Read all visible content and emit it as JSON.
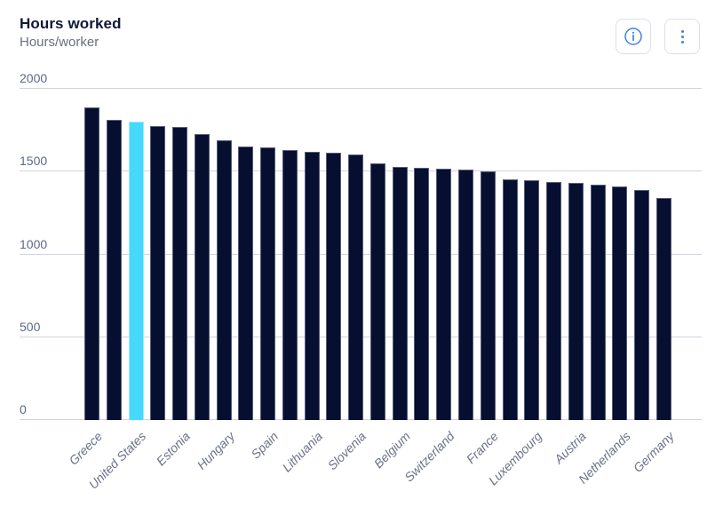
{
  "header": {
    "title": "Hours worked",
    "subtitle": "Hours/worker"
  },
  "toolbar": {
    "info_button_label": "Information",
    "menu_button_label": "More options"
  },
  "colors": {
    "bar": "#060f2f",
    "bar_border": "#565e7a",
    "highlight": "#45d9fc",
    "gridline": "#cdd4e1",
    "axis_text": "#5e6887",
    "icon_blue": "#4080e8"
  },
  "chart_data": {
    "type": "bar",
    "title": "Hours worked",
    "subtitle": "Hours/worker",
    "ylabel": "Hours/worker",
    "xlabel": "",
    "ylim": [
      0,
      2000
    ],
    "yticks": [
      0,
      500,
      1000,
      1500,
      2000
    ],
    "grid": true,
    "legend": false,
    "sorted": "descending",
    "visible_x_labels": [
      "Greece",
      "United States",
      "Estonia",
      "Hungary",
      "Spain",
      "Lithuania",
      "Slovenia",
      "Belgium",
      "Switzerland",
      "France",
      "Luxembourg",
      "Austria",
      "Netherlands",
      "Germany"
    ],
    "bars": [
      {
        "label": "Greece",
        "value": 1890,
        "highlighted": false
      },
      {
        "label": "",
        "value": 1815,
        "highlighted": false
      },
      {
        "label": "United States",
        "value": 1800,
        "highlighted": true
      },
      {
        "label": "",
        "value": 1775,
        "highlighted": false
      },
      {
        "label": "Estonia",
        "value": 1770,
        "highlighted": false
      },
      {
        "label": "",
        "value": 1725,
        "highlighted": false
      },
      {
        "label": "Hungary",
        "value": 1690,
        "highlighted": false
      },
      {
        "label": "",
        "value": 1650,
        "highlighted": false
      },
      {
        "label": "Spain",
        "value": 1645,
        "highlighted": false
      },
      {
        "label": "",
        "value": 1630,
        "highlighted": false
      },
      {
        "label": "Lithuania",
        "value": 1620,
        "highlighted": false
      },
      {
        "label": "",
        "value": 1615,
        "highlighted": false
      },
      {
        "label": "Slovenia",
        "value": 1605,
        "highlighted": false
      },
      {
        "label": "",
        "value": 1550,
        "highlighted": false
      },
      {
        "label": "Belgium",
        "value": 1530,
        "highlighted": false
      },
      {
        "label": "",
        "value": 1525,
        "highlighted": false
      },
      {
        "label": "Switzerland",
        "value": 1520,
        "highlighted": false
      },
      {
        "label": "",
        "value": 1510,
        "highlighted": false
      },
      {
        "label": "France",
        "value": 1500,
        "highlighted": false
      },
      {
        "label": "",
        "value": 1455,
        "highlighted": false
      },
      {
        "label": "Luxembourg",
        "value": 1450,
        "highlighted": false
      },
      {
        "label": "",
        "value": 1435,
        "highlighted": false
      },
      {
        "label": "Austria",
        "value": 1430,
        "highlighted": false
      },
      {
        "label": "",
        "value": 1420,
        "highlighted": false
      },
      {
        "label": "Netherlands",
        "value": 1410,
        "highlighted": false
      },
      {
        "label": "",
        "value": 1390,
        "highlighted": false
      },
      {
        "label": "Germany",
        "value": 1340,
        "highlighted": false
      }
    ]
  }
}
